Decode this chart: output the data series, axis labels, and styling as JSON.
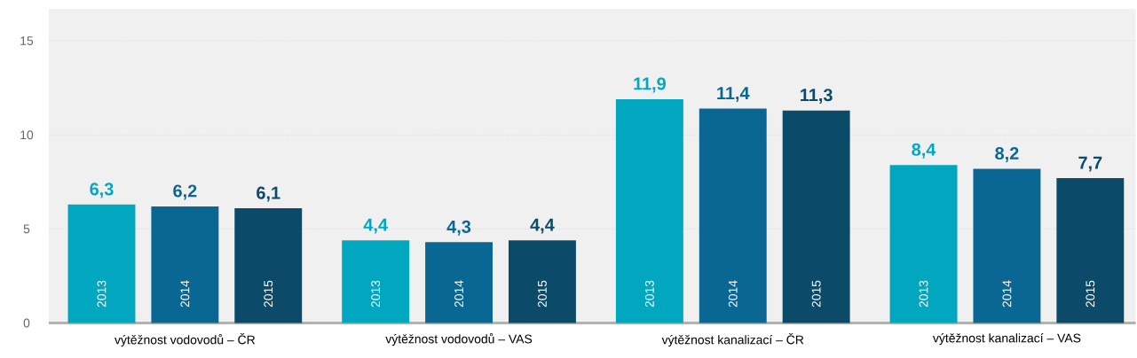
{
  "chart_data": {
    "type": "bar",
    "categories": [
      "výtěžnost vodovodů – ČR",
      "výtěžnost vodovodů – VAS",
      "výtěžnost kanalizací – ČR",
      "výtěžnost kanalizací – VAS"
    ],
    "series": [
      {
        "name": "2013",
        "color": "#00a7bf",
        "values": [
          6.3,
          4.4,
          11.9,
          8.4
        ],
        "value_labels": [
          "6,3",
          "4,4",
          "11,9",
          "8,4"
        ]
      },
      {
        "name": "2014",
        "color": "#0a6693",
        "values": [
          6.2,
          4.3,
          11.4,
          8.2
        ],
        "value_labels": [
          "6,2",
          "4,3",
          "11,4",
          "8,2"
        ]
      },
      {
        "name": "2015",
        "color": "#0b4a69",
        "values": [
          6.1,
          4.4,
          11.3,
          7.7
        ],
        "value_labels": [
          "6,1",
          "4,4",
          "11,3",
          "7,7"
        ]
      }
    ],
    "ylim": [
      0,
      16.7
    ],
    "yticks": [
      0,
      5,
      10,
      15
    ],
    "grid": "y"
  }
}
